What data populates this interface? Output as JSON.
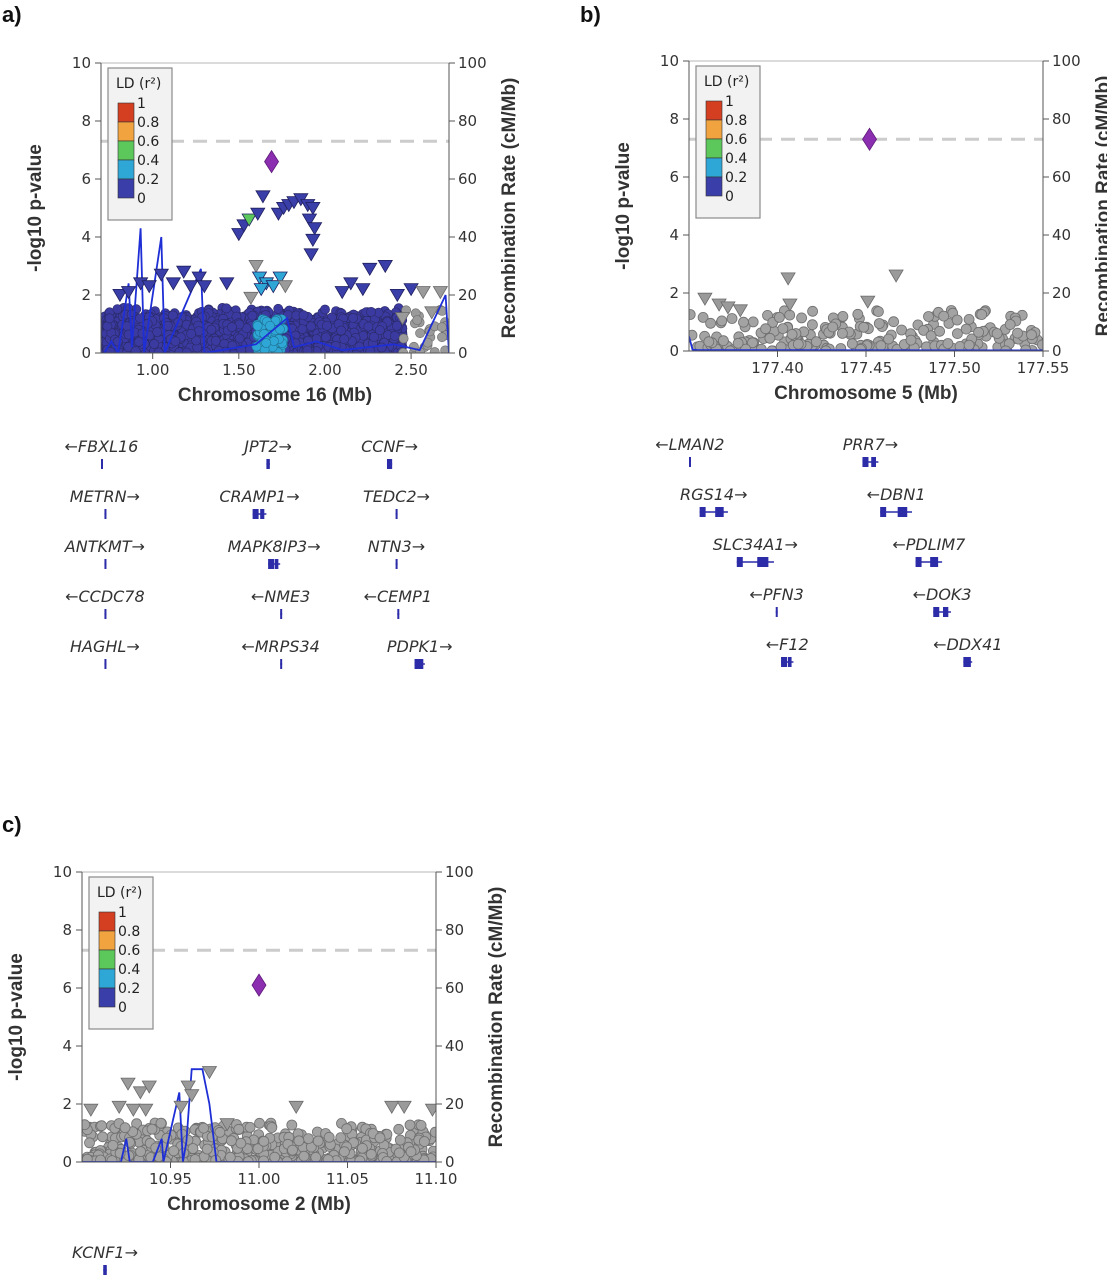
{
  "chart_data": [
    {
      "panel": "a)",
      "type": "scatter",
      "xlabel": "Chromosome 16 (Mb)",
      "ylabel": "-log10 p-value",
      "y2label": "Recombination Rate (cM/Mb)",
      "xlim": [
        0.7,
        2.72
      ],
      "ylim": [
        0,
        10
      ],
      "y2lim": [
        0,
        100
      ],
      "xticks": [
        {
          "v": 1.0,
          "t": "1.00"
        },
        {
          "v": 1.5,
          "t": "1.50"
        },
        {
          "v": 2.0,
          "t": "2.00"
        },
        {
          "v": 2.5,
          "t": "2.50"
        }
      ],
      "yticks": [
        "0",
        "2",
        "4",
        "6",
        "8",
        "10"
      ],
      "y2ticks": [
        "0",
        "20",
        "40",
        "60",
        "80",
        "100"
      ],
      "threshold": 7.3,
      "legend": {
        "title": "LD (r²)",
        "labels": [
          "1",
          "0.8",
          "0.6",
          "0.4",
          "0.2",
          "0"
        ],
        "colors": [
          "#d43f22",
          "#f1a340",
          "#5cc85c",
          "#2fa7d6",
          "#3a3ea8"
        ]
      },
      "lead": {
        "x": 1.69,
        "y": 6.6
      },
      "bg_color": "#3b3aa0",
      "bg_band": {
        "x0": 0.72,
        "x1": 2.45,
        "ymax": 1.6
      },
      "points": [
        {
          "x": 1.5,
          "y": 4.1,
          "c": "#3a3ea8"
        },
        {
          "x": 1.53,
          "y": 4.4,
          "c": "#3a3ea8"
        },
        {
          "x": 1.56,
          "y": 4.6,
          "c": "#5cc85c"
        },
        {
          "x": 1.61,
          "y": 4.8,
          "c": "#3a3ea8"
        },
        {
          "x": 1.64,
          "y": 5.4,
          "c": "#3a3ea8"
        },
        {
          "x": 1.73,
          "y": 4.8,
          "c": "#3a3ea8"
        },
        {
          "x": 1.76,
          "y": 5.0,
          "c": "#3a3ea8"
        },
        {
          "x": 1.79,
          "y": 5.1,
          "c": "#3a3ea8"
        },
        {
          "x": 1.82,
          "y": 5.2,
          "c": "#3a3ea8"
        },
        {
          "x": 1.86,
          "y": 5.3,
          "c": "#3a3ea8"
        },
        {
          "x": 1.9,
          "y": 5.1,
          "c": "#3a3ea8"
        },
        {
          "x": 1.93,
          "y": 5.0,
          "c": "#3a3ea8"
        },
        {
          "x": 1.91,
          "y": 4.6,
          "c": "#3a3ea8"
        },
        {
          "x": 1.94,
          "y": 4.3,
          "c": "#3a3ea8"
        },
        {
          "x": 1.93,
          "y": 3.9,
          "c": "#3a3ea8"
        },
        {
          "x": 1.92,
          "y": 3.4,
          "c": "#3a3ea8"
        },
        {
          "x": 1.6,
          "y": 3.0,
          "c": "#9a9a9a"
        },
        {
          "x": 1.62,
          "y": 2.6,
          "c": "#2fa7d6"
        },
        {
          "x": 1.66,
          "y": 2.4,
          "c": "#2fa7d6"
        },
        {
          "x": 1.63,
          "y": 2.2,
          "c": "#2fa7d6"
        },
        {
          "x": 1.74,
          "y": 2.6,
          "c": "#2fa7d6"
        },
        {
          "x": 1.7,
          "y": 2.3,
          "c": "#2fa7d6"
        },
        {
          "x": 1.77,
          "y": 2.3,
          "c": "#9a9a9a"
        },
        {
          "x": 1.57,
          "y": 1.9,
          "c": "#9a9a9a"
        },
        {
          "x": 0.81,
          "y": 2.0,
          "c": "#3a3ea8"
        },
        {
          "x": 0.86,
          "y": 2.1,
          "c": "#3a3ea8"
        },
        {
          "x": 0.93,
          "y": 2.4,
          "c": "#3a3ea8"
        },
        {
          "x": 0.98,
          "y": 2.3,
          "c": "#3a3ea8"
        },
        {
          "x": 1.05,
          "y": 2.7,
          "c": "#3a3ea8"
        },
        {
          "x": 1.12,
          "y": 2.4,
          "c": "#3a3ea8"
        },
        {
          "x": 1.18,
          "y": 2.8,
          "c": "#3a3ea8"
        },
        {
          "x": 1.22,
          "y": 2.3,
          "c": "#3a3ea8"
        },
        {
          "x": 1.27,
          "y": 2.6,
          "c": "#3a3ea8"
        },
        {
          "x": 1.3,
          "y": 2.3,
          "c": "#3a3ea8"
        },
        {
          "x": 1.43,
          "y": 2.4,
          "c": "#3a3ea8"
        },
        {
          "x": 2.1,
          "y": 2.1,
          "c": "#3a3ea8"
        },
        {
          "x": 2.15,
          "y": 2.4,
          "c": "#3a3ea8"
        },
        {
          "x": 2.22,
          "y": 2.2,
          "c": "#3a3ea8"
        },
        {
          "x": 2.26,
          "y": 2.9,
          "c": "#3a3ea8"
        },
        {
          "x": 2.35,
          "y": 3.0,
          "c": "#3a3ea8"
        },
        {
          "x": 2.42,
          "y": 2.0,
          "c": "#3a3ea8"
        },
        {
          "x": 2.5,
          "y": 2.2,
          "c": "#3a3ea8"
        },
        {
          "x": 2.57,
          "y": 2.1,
          "c": "#9a9a9a"
        },
        {
          "x": 2.62,
          "y": 1.4,
          "c": "#9a9a9a"
        },
        {
          "x": 2.67,
          "y": 2.1,
          "c": "#9a9a9a"
        },
        {
          "x": 2.45,
          "y": 1.2,
          "c": "#9a9a9a"
        }
      ],
      "genes": [
        {
          "label": "←FBXL16",
          "x0": 0.7,
          "x1": 0.705,
          "row": 0
        },
        {
          "label": "JPT2→",
          "x0": 1.66,
          "x1": 1.68,
          "row": 0
        },
        {
          "label": "CCNF→",
          "x0": 2.36,
          "x1": 2.39,
          "row": 0
        },
        {
          "label": "METRN→",
          "x0": 0.72,
          "x1": 0.725,
          "row": 1
        },
        {
          "label": "CRAMP1→",
          "x0": 1.58,
          "x1": 1.66,
          "row": 1
        },
        {
          "label": "TEDC2→",
          "x0": 2.41,
          "x1": 2.42,
          "row": 1
        },
        {
          "label": "ANTKMT→",
          "x0": 0.72,
          "x1": 0.725,
          "row": 2
        },
        {
          "label": "MAPK8IP3→",
          "x0": 1.67,
          "x1": 1.74,
          "row": 2
        },
        {
          "label": "NTN3→",
          "x0": 2.41,
          "x1": 2.42,
          "row": 2
        },
        {
          "label": "←CCDC78",
          "x0": 0.72,
          "x1": 0.725,
          "row": 3
        },
        {
          "label": "←NME3",
          "x0": 1.74,
          "x1": 1.745,
          "row": 3
        },
        {
          "label": "←CEMP1",
          "x0": 2.42,
          "x1": 2.425,
          "row": 3
        },
        {
          "label": "HAGHL→",
          "x0": 0.72,
          "x1": 0.725,
          "row": 4
        },
        {
          "label": "←MRPS34",
          "x0": 1.74,
          "x1": 1.745,
          "row": 4
        },
        {
          "label": "PDPK1→",
          "x0": 2.52,
          "x1": 2.58,
          "row": 4
        }
      ]
    },
    {
      "panel": "b)",
      "type": "scatter",
      "xlabel": "Chromosome 5 (Mb)",
      "ylabel": "-log10 p-value",
      "y2label": "Recombination Rate (cM/Mb)",
      "xlim": [
        177.35,
        177.55
      ],
      "ylim": [
        0,
        10
      ],
      "y2lim": [
        0,
        100
      ],
      "xticks": [
        {
          "v": 177.4,
          "t": "177.40"
        },
        {
          "v": 177.45,
          "t": "177.45"
        },
        {
          "v": 177.5,
          "t": "177.50"
        },
        {
          "v": 177.55,
          "t": "177.55"
        }
      ],
      "yticks": [
        "0",
        "2",
        "4",
        "6",
        "8",
        "10"
      ],
      "y2ticks": [
        "0",
        "20",
        "40",
        "60",
        "80",
        "100"
      ],
      "threshold": 7.3,
      "legend": {
        "title": "LD (r²)",
        "labels": [
          "1",
          "0.8",
          "0.6",
          "0.4",
          "0.2",
          "0"
        ],
        "colors": [
          "#d43f22",
          "#f1a340",
          "#5cc85c",
          "#2fa7d6",
          "#3a3ea8"
        ]
      },
      "lead": {
        "x": 177.452,
        "y": 7.3
      },
      "points": [
        {
          "x": 177.359,
          "y": 1.8,
          "c": "#9a9a9a"
        },
        {
          "x": 177.367,
          "y": 1.6,
          "c": "#9a9a9a"
        },
        {
          "x": 177.372,
          "y": 1.5,
          "c": "#9a9a9a"
        },
        {
          "x": 177.379,
          "y": 1.4,
          "c": "#9a9a9a"
        },
        {
          "x": 177.406,
          "y": 2.5,
          "c": "#9a9a9a"
        },
        {
          "x": 177.407,
          "y": 1.6,
          "c": "#9a9a9a"
        },
        {
          "x": 177.451,
          "y": 1.7,
          "c": "#9a9a9a"
        },
        {
          "x": 177.467,
          "y": 2.6,
          "c": "#9a9a9a"
        }
      ],
      "genes": [
        {
          "label": "←LMAN2",
          "x0": 177.35,
          "x1": 177.351,
          "row": 0
        },
        {
          "label": "PRR7→",
          "x0": 177.448,
          "x1": 177.457,
          "row": 0
        },
        {
          "label": "RGS14→",
          "x0": 177.356,
          "x1": 177.372,
          "row": 1
        },
        {
          "label": "←DBN1",
          "x0": 177.458,
          "x1": 177.476,
          "row": 1
        },
        {
          "label": "SLC34A1→",
          "x0": 177.377,
          "x1": 177.398,
          "row": 2
        },
        {
          "label": "←PDLIM7",
          "x0": 177.478,
          "x1": 177.493,
          "row": 2
        },
        {
          "label": "←PFN3",
          "x0": 177.399,
          "x1": 177.4,
          "row": 3
        },
        {
          "label": "←DOK3",
          "x0": 177.488,
          "x1": 177.498,
          "row": 3
        },
        {
          "label": "←F12",
          "x0": 177.402,
          "x1": 177.409,
          "row": 4
        },
        {
          "label": "←DDX41",
          "x0": 177.505,
          "x1": 177.51,
          "row": 4
        }
      ]
    },
    {
      "panel": "c)",
      "type": "scatter",
      "xlabel": "Chromosome 2 (Mb)",
      "ylabel": "-log10 p-value",
      "y2label": "Recombination Rate (cM/Mb)",
      "xlim": [
        10.9,
        11.1
      ],
      "ylim": [
        0,
        10
      ],
      "y2lim": [
        0,
        100
      ],
      "xticks": [
        {
          "v": 10.95,
          "t": "10.95"
        },
        {
          "v": 11.0,
          "t": "11.00"
        },
        {
          "v": 11.05,
          "t": "11.05"
        },
        {
          "v": 11.1,
          "t": "11.10"
        }
      ],
      "yticks": [
        "0",
        "2",
        "4",
        "6",
        "8",
        "10"
      ],
      "y2ticks": [
        "0",
        "20",
        "40",
        "60",
        "80",
        "100"
      ],
      "threshold": 7.3,
      "legend": {
        "title": "LD (r²)",
        "labels": [
          "1",
          "0.8",
          "0.6",
          "0.4",
          "0.2",
          "0"
        ],
        "colors": [
          "#d43f22",
          "#f1a340",
          "#5cc85c",
          "#2fa7d6",
          "#3a3ea8"
        ]
      },
      "lead": {
        "x": 11.0,
        "y": 6.1
      },
      "points": [
        {
          "x": 10.926,
          "y": 2.7,
          "c": "#9a9a9a"
        },
        {
          "x": 10.933,
          "y": 2.4,
          "c": "#9a9a9a"
        },
        {
          "x": 10.938,
          "y": 2.6,
          "c": "#9a9a9a"
        },
        {
          "x": 10.921,
          "y": 1.9,
          "c": "#9a9a9a"
        },
        {
          "x": 10.929,
          "y": 1.8,
          "c": "#9a9a9a"
        },
        {
          "x": 10.936,
          "y": 1.8,
          "c": "#9a9a9a"
        },
        {
          "x": 10.96,
          "y": 2.6,
          "c": "#9a9a9a"
        },
        {
          "x": 10.962,
          "y": 2.3,
          "c": "#9a9a9a"
        },
        {
          "x": 10.972,
          "y": 3.1,
          "c": "#9a9a9a"
        },
        {
          "x": 10.956,
          "y": 1.9,
          "c": "#9a9a9a"
        },
        {
          "x": 11.021,
          "y": 1.9,
          "c": "#9a9a9a"
        },
        {
          "x": 11.075,
          "y": 1.9,
          "c": "#9a9a9a"
        },
        {
          "x": 11.082,
          "y": 1.9,
          "c": "#9a9a9a"
        },
        {
          "x": 11.098,
          "y": 1.8,
          "c": "#9a9a9a"
        },
        {
          "x": 10.905,
          "y": 1.8,
          "c": "#9a9a9a"
        },
        {
          "x": 10.982,
          "y": 1.3,
          "c": "#9a9a9a"
        }
      ],
      "genes": [
        {
          "label": "KCNF1→",
          "x0": 10.912,
          "x1": 10.914,
          "row": 0
        }
      ]
    }
  ]
}
